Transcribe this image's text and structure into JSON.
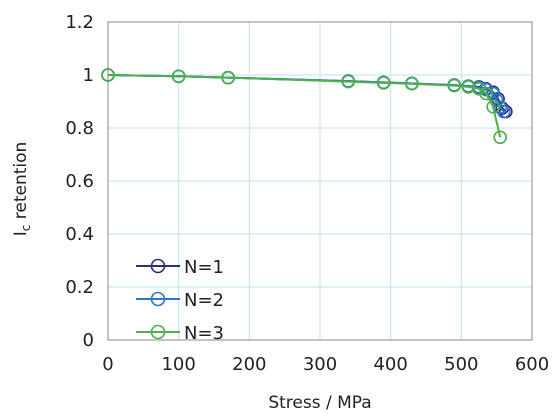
{
  "chart_data": {
    "type": "scatter",
    "xlabel": "Stress / MPa",
    "ylabel_main": "I",
    "ylabel_sub": "c",
    "ylabel_rest": " retention",
    "xlim": [
      0,
      600
    ],
    "ylim": [
      0,
      1.2
    ],
    "x_ticks": [
      0,
      100,
      200,
      300,
      400,
      500,
      600
    ],
    "y_ticks": [
      0,
      0.2,
      0.4,
      0.6,
      0.8,
      1,
      1.2
    ],
    "x_tick_labels": [
      "0",
      "100",
      "200",
      "300",
      "400",
      "500",
      "600"
    ],
    "y_tick_labels": [
      "0",
      "0.2",
      "0.4",
      "0.6",
      "0.8",
      "1",
      "1.2"
    ],
    "grid": true,
    "legend_position": "bottom-left",
    "series": [
      {
        "name": "N=1",
        "color": "#2b2f7a",
        "points": [
          [
            0,
            1.0
          ],
          [
            100,
            0.995
          ],
          [
            170,
            0.99
          ],
          [
            340,
            0.977
          ],
          [
            390,
            0.972
          ],
          [
            430,
            0.968
          ],
          [
            490,
            0.962
          ],
          [
            510,
            0.958
          ],
          [
            525,
            0.955
          ],
          [
            535,
            0.948
          ],
          [
            545,
            0.935
          ],
          [
            552,
            0.91
          ],
          [
            558,
            0.875
          ],
          [
            563,
            0.862
          ]
        ]
      },
      {
        "name": "N=2",
        "color": "#2e74c8",
        "points": [
          [
            0,
            1.0
          ],
          [
            100,
            0.995
          ],
          [
            170,
            0.99
          ],
          [
            340,
            0.977
          ],
          [
            390,
            0.972
          ],
          [
            430,
            0.968
          ],
          [
            490,
            0.962
          ],
          [
            510,
            0.957
          ],
          [
            525,
            0.952
          ],
          [
            535,
            0.945
          ],
          [
            545,
            0.93
          ],
          [
            550,
            0.905
          ],
          [
            555,
            0.878
          ],
          [
            560,
            0.862
          ]
        ]
      },
      {
        "name": "N=3",
        "color": "#4cb04c",
        "points": [
          [
            0,
            1.0
          ],
          [
            100,
            0.995
          ],
          [
            170,
            0.99
          ],
          [
            340,
            0.975
          ],
          [
            390,
            0.97
          ],
          [
            430,
            0.967
          ],
          [
            490,
            0.96
          ],
          [
            510,
            0.955
          ],
          [
            525,
            0.948
          ],
          [
            535,
            0.93
          ],
          [
            545,
            0.88
          ],
          [
            555,
            0.765
          ]
        ]
      }
    ]
  }
}
